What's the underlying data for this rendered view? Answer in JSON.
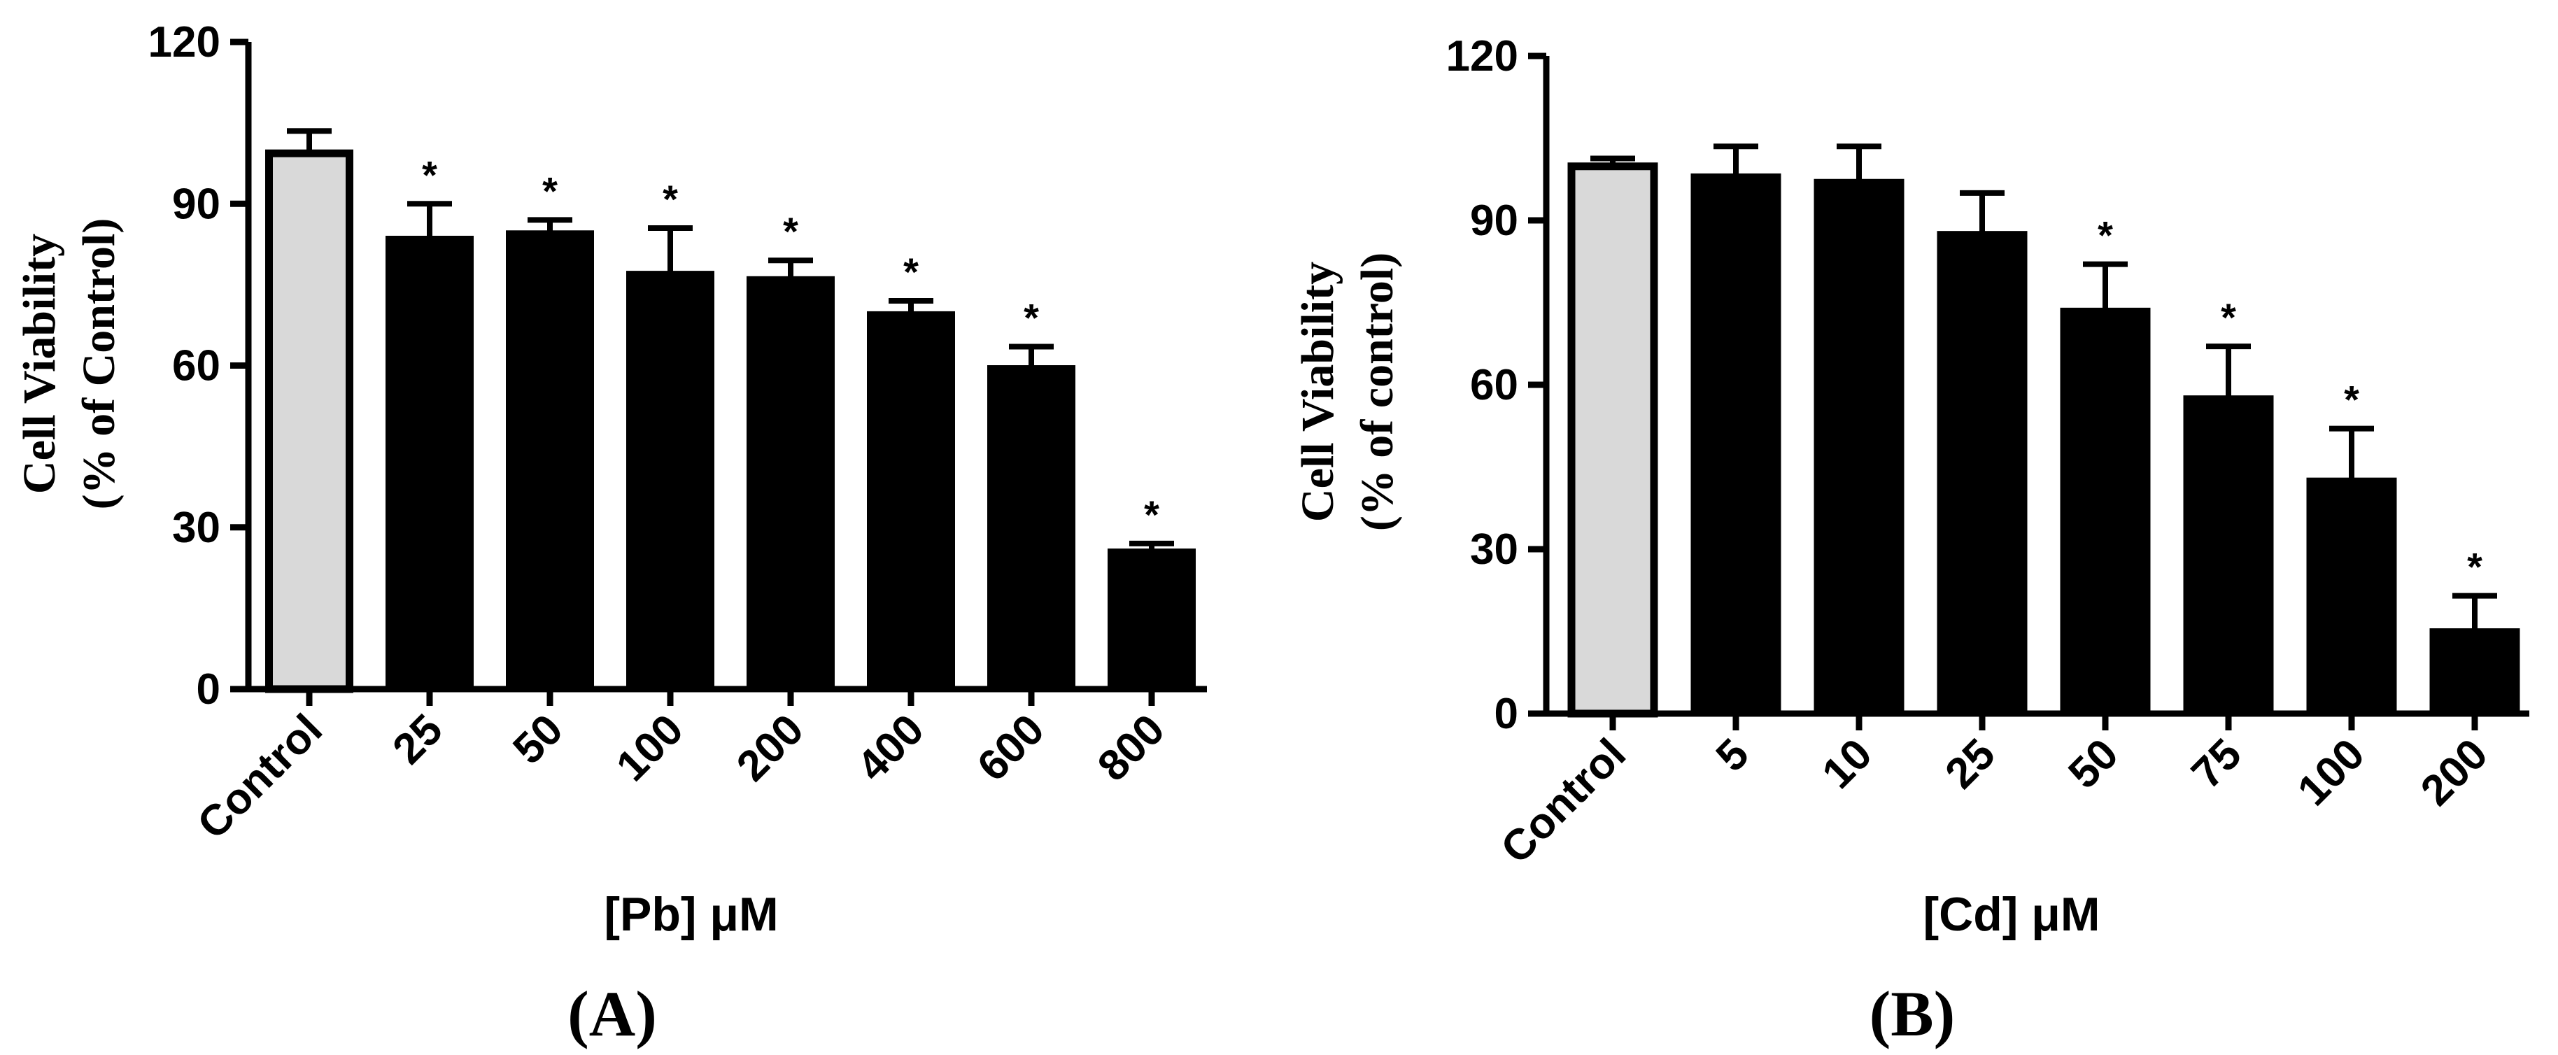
{
  "chart_data": [
    {
      "type": "bar",
      "panel_label": "(A)",
      "categories": [
        "Control",
        "25",
        "50",
        "100",
        "200",
        "400",
        "600",
        "800"
      ],
      "values": [
        100,
        84,
        85,
        77.5,
        76.5,
        70,
        60,
        26
      ],
      "errors": [
        3.5,
        6,
        2,
        8,
        3,
        2,
        3.5,
        1
      ],
      "significant": [
        false,
        true,
        true,
        true,
        true,
        true,
        true,
        true
      ],
      "significance_marker": "*",
      "bar_colors": [
        "#d9d9d9",
        "#000000",
        "#000000",
        "#000000",
        "#000000",
        "#000000",
        "#000000",
        "#000000"
      ],
      "ylabel_line1": "Cell Viability",
      "ylabel_line2": "(% of Control)",
      "xlabel": "[Pb] μM",
      "ylim": [
        0,
        120
      ],
      "yticks": [
        "0",
        "30",
        "60",
        "90",
        "120"
      ],
      "grid": false,
      "legend": "none"
    },
    {
      "type": "bar",
      "panel_label": "(B)",
      "categories": [
        "Control",
        "5",
        "10",
        "25",
        "50",
        "75",
        "100",
        "200"
      ],
      "values": [
        100.5,
        98.5,
        97.5,
        88,
        74,
        58,
        43,
        15.5
      ],
      "errors": [
        0.8,
        5,
        6,
        7,
        8,
        9,
        9,
        6
      ],
      "significant": [
        false,
        false,
        false,
        false,
        true,
        true,
        true,
        true
      ],
      "significance_marker": "*",
      "bar_colors": [
        "#d9d9d9",
        "#000000",
        "#000000",
        "#000000",
        "#000000",
        "#000000",
        "#000000",
        "#000000"
      ],
      "ylabel_line1": "Cell Viability",
      "ylabel_line2": "(% of control)",
      "xlabel": "[Cd] μM",
      "ylim": [
        0,
        120
      ],
      "yticks": [
        "0",
        "30",
        "60",
        "90",
        "120"
      ],
      "grid": false,
      "legend": "none"
    }
  ]
}
